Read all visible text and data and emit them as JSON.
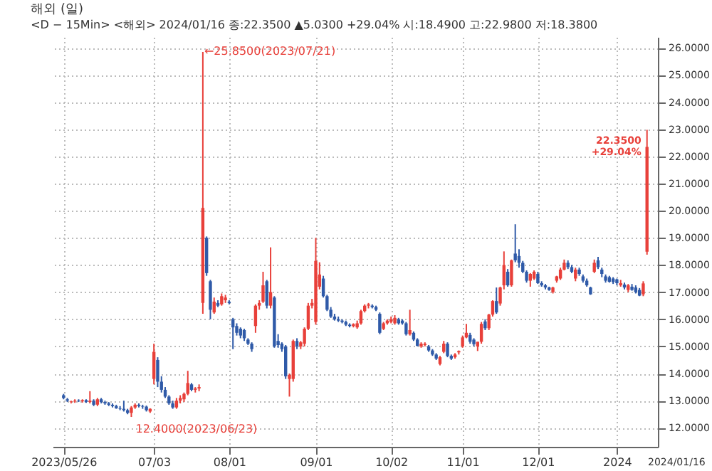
{
  "chart_data": {
    "type": "candlestick",
    "title": "해외 (일)",
    "subtitle": "<D − 15Min> <해외> 2024/01/16 종:22.3500 ▲5.0300 +29.04% 시:18.4900 고:22.9800 저:18.3800",
    "categories": [
      "2023/05/26",
      null,
      null,
      null,
      null,
      null,
      null,
      null,
      null,
      null,
      null,
      null,
      null,
      null,
      null,
      null,
      null,
      null,
      null,
      null,
      null,
      null,
      null,
      null,
      "07/03",
      null,
      null,
      null,
      null,
      null,
      null,
      null,
      null,
      null,
      null,
      null,
      null,
      null,
      null,
      null,
      null,
      null,
      null,
      null,
      "08/01",
      null,
      null,
      null,
      null,
      null,
      null,
      null,
      null,
      null,
      null,
      null,
      null,
      null,
      null,
      null,
      null,
      null,
      null,
      null,
      null,
      null,
      null,
      "09/01",
      null,
      null,
      null,
      null,
      null,
      null,
      null,
      null,
      null,
      null,
      null,
      null,
      null,
      null,
      null,
      null,
      null,
      null,
      null,
      "10/02",
      null,
      null,
      null,
      null,
      null,
      null,
      null,
      null,
      null,
      null,
      null,
      null,
      null,
      null,
      null,
      null,
      null,
      null,
      "11/01",
      null,
      null,
      null,
      null,
      null,
      null,
      null,
      null,
      null,
      null,
      null,
      null,
      null,
      null,
      null,
      null,
      null,
      null,
      null,
      "12/01",
      null,
      null,
      null,
      null,
      null,
      null,
      null,
      null,
      null,
      null,
      null,
      null,
      null,
      null,
      null,
      null,
      null,
      null,
      null,
      null,
      "2024",
      null,
      null,
      null,
      null,
      null,
      null,
      null,
      null
    ],
    "ohlc": [
      [
        13.2,
        13.25,
        13.05,
        13.1
      ],
      [
        13.05,
        13.1,
        12.95,
        13.0
      ],
      [
        12.95,
        13.0,
        12.9,
        12.97
      ],
      [
        12.97,
        13.05,
        12.92,
        13.0
      ],
      [
        13.0,
        13.05,
        12.95,
        12.98
      ],
      [
        12.98,
        13.05,
        12.93,
        13.02
      ],
      [
        13.02,
        13.05,
        12.92,
        12.95
      ],
      [
        12.95,
        13.35,
        12.9,
        13.0
      ],
      [
        13.0,
        13.05,
        12.8,
        12.85
      ],
      [
        12.85,
        13.1,
        12.8,
        13.05
      ],
      [
        13.05,
        13.1,
        12.9,
        12.95
      ],
      [
        12.95,
        13.0,
        12.85,
        12.9
      ],
      [
        12.9,
        12.95,
        12.8,
        12.85
      ],
      [
        12.85,
        12.9,
        12.75,
        12.8
      ],
      [
        12.8,
        12.85,
        12.7,
        12.72
      ],
      [
        12.72,
        12.8,
        12.65,
        12.7
      ],
      [
        12.7,
        13.0,
        12.6,
        12.65
      ],
      [
        12.65,
        12.7,
        12.5,
        12.55
      ],
      [
        12.55,
        12.8,
        12.4,
        12.75
      ],
      [
        12.75,
        12.9,
        12.7,
        12.85
      ],
      [
        12.85,
        12.9,
        12.75,
        12.8
      ],
      [
        12.8,
        12.85,
        12.7,
        12.78
      ],
      [
        12.78,
        12.82,
        12.6,
        12.65
      ],
      [
        12.6,
        12.72,
        12.55,
        12.7
      ],
      [
        13.8,
        15.1,
        13.6,
        14.8
      ],
      [
        14.5,
        14.6,
        13.5,
        13.7
      ],
      [
        13.7,
        13.9,
        13.3,
        13.4
      ],
      [
        13.4,
        13.5,
        13.1,
        13.15
      ],
      [
        13.15,
        13.2,
        12.85,
        12.9
      ],
      [
        12.9,
        13.0,
        12.7,
        12.75
      ],
      [
        12.75,
        13.1,
        12.7,
        13.0
      ],
      [
        13.0,
        13.2,
        12.9,
        13.1
      ],
      [
        13.05,
        13.3,
        12.95,
        13.25
      ],
      [
        13.25,
        14.1,
        13.2,
        13.65
      ],
      [
        13.6,
        13.65,
        13.35,
        13.4
      ],
      [
        13.4,
        13.5,
        13.3,
        13.45
      ],
      [
        13.45,
        13.6,
        13.35,
        13.5
      ],
      [
        16.6,
        25.85,
        16.2,
        20.1
      ],
      [
        19.0,
        19.05,
        17.6,
        17.7
      ],
      [
        17.4,
        17.45,
        16.0,
        16.35
      ],
      [
        16.25,
        16.8,
        16.2,
        16.65
      ],
      [
        16.6,
        16.7,
        16.45,
        16.5
      ],
      [
        16.55,
        16.95,
        16.5,
        16.85
      ],
      [
        16.7,
        16.9,
        16.6,
        16.8
      ],
      [
        16.65,
        16.7,
        16.55,
        16.6
      ],
      [
        16.0,
        16.05,
        14.9,
        15.7
      ],
      [
        15.75,
        15.85,
        15.4,
        15.5
      ],
      [
        15.65,
        15.7,
        15.3,
        15.4
      ],
      [
        15.6,
        15.65,
        15.2,
        15.3
      ],
      [
        15.25,
        15.3,
        15.05,
        15.1
      ],
      [
        15.1,
        15.15,
        14.8,
        14.9
      ],
      [
        15.75,
        16.55,
        15.5,
        16.5
      ],
      [
        16.5,
        16.7,
        16.35,
        16.6
      ],
      [
        16.65,
        17.75,
        16.6,
        17.25
      ],
      [
        17.4,
        17.45,
        16.4,
        16.5
      ],
      [
        16.5,
        18.65,
        16.4,
        17.0
      ],
      [
        16.8,
        16.85,
        14.95,
        15.0
      ],
      [
        15.2,
        15.45,
        14.95,
        15.05
      ],
      [
        15.1,
        15.15,
        14.8,
        14.9
      ],
      [
        15.0,
        15.05,
        13.8,
        13.9
      ],
      [
        13.8,
        14.0,
        13.15,
        13.95
      ],
      [
        13.8,
        15.25,
        13.7,
        15.2
      ],
      [
        15.2,
        15.3,
        14.9,
        15.0
      ],
      [
        15.0,
        15.2,
        14.9,
        15.15
      ],
      [
        15.1,
        15.7,
        15.0,
        15.65
      ],
      [
        15.65,
        16.6,
        15.6,
        16.5
      ],
      [
        16.5,
        16.75,
        16.4,
        16.6
      ],
      [
        15.9,
        19.0,
        15.8,
        18.15
      ],
      [
        17.2,
        18.1,
        17.1,
        17.65
      ],
      [
        17.5,
        17.6,
        16.8,
        16.85
      ],
      [
        16.85,
        16.9,
        16.3,
        16.35
      ],
      [
        16.35,
        16.45,
        16.05,
        16.1
      ],
      [
        16.1,
        16.2,
        15.95,
        16.0
      ],
      [
        16.0,
        16.1,
        15.9,
        15.95
      ],
      [
        15.95,
        16.0,
        15.85,
        15.9
      ],
      [
        15.9,
        15.95,
        15.75,
        15.8
      ],
      [
        15.8,
        15.85,
        15.7,
        15.75
      ],
      [
        15.75,
        15.85,
        15.7,
        15.82
      ],
      [
        15.7,
        15.95,
        15.65,
        15.85
      ],
      [
        15.85,
        16.35,
        15.8,
        16.3
      ],
      [
        16.3,
        16.55,
        16.25,
        16.5
      ],
      [
        16.5,
        16.6,
        16.4,
        16.55
      ],
      [
        16.5,
        16.55,
        16.4,
        16.45
      ],
      [
        16.45,
        16.5,
        16.3,
        16.35
      ],
      [
        16.2,
        16.25,
        15.45,
        15.5
      ],
      [
        15.65,
        15.9,
        15.6,
        15.85
      ],
      [
        15.85,
        16.0,
        15.8,
        15.95
      ],
      [
        15.9,
        16.1,
        15.85,
        16.0
      ],
      [
        15.85,
        16.15,
        15.8,
        16.05
      ],
      [
        16.0,
        16.05,
        15.8,
        15.85
      ],
      [
        15.95,
        16.0,
        15.8,
        15.85
      ],
      [
        15.85,
        15.9,
        15.4,
        15.45
      ],
      [
        15.45,
        16.35,
        15.4,
        15.6
      ],
      [
        15.5,
        15.55,
        15.2,
        15.25
      ],
      [
        15.25,
        15.3,
        15.0,
        15.02
      ],
      [
        15.0,
        15.15,
        14.95,
        15.1
      ],
      [
        15.05,
        15.15,
        15.0,
        15.1
      ],
      [
        15.0,
        15.05,
        14.8,
        14.85
      ],
      [
        14.85,
        14.9,
        14.65,
        14.7
      ],
      [
        14.7,
        14.75,
        14.5,
        14.55
      ],
      [
        14.35,
        14.65,
        14.3,
        14.6
      ],
      [
        14.8,
        15.2,
        14.75,
        15.1
      ],
      [
        15.1,
        15.15,
        14.6,
        14.65
      ],
      [
        14.65,
        14.7,
        14.5,
        14.55
      ],
      [
        14.6,
        14.75,
        14.55,
        14.7
      ],
      [
        14.78,
        14.85,
        14.7,
        14.83
      ],
      [
        15.0,
        15.4,
        14.95,
        15.33
      ],
      [
        15.33,
        15.83,
        15.3,
        15.5
      ],
      [
        15.42,
        15.5,
        15.1,
        15.17
      ],
      [
        15.25,
        15.3,
        15.0,
        15.08
      ],
      [
        15.0,
        15.17,
        14.83,
        15.17
      ],
      [
        15.17,
        15.9,
        15.1,
        15.83
      ],
      [
        15.92,
        16.0,
        15.6,
        15.67
      ],
      [
        15.67,
        16.2,
        15.6,
        16.17
      ],
      [
        16.17,
        16.7,
        16.1,
        16.67
      ],
      [
        16.67,
        17.17,
        16.2,
        16.25
      ],
      [
        16.58,
        17.2,
        16.5,
        17.17
      ],
      [
        17.25,
        18.5,
        17.1,
        18.0
      ],
      [
        17.75,
        17.85,
        17.2,
        17.25
      ],
      [
        17.25,
        18.2,
        17.2,
        18.17
      ],
      [
        18.42,
        19.5,
        18.1,
        18.17
      ],
      [
        18.33,
        18.58,
        17.9,
        18.08
      ],
      [
        18.08,
        18.15,
        17.7,
        17.75
      ],
      [
        17.75,
        17.8,
        17.35,
        17.42
      ],
      [
        17.42,
        17.7,
        17.2,
        17.67
      ],
      [
        17.5,
        17.8,
        17.45,
        17.75
      ],
      [
        17.67,
        17.75,
        17.3,
        17.33
      ],
      [
        17.33,
        17.4,
        17.2,
        17.25
      ],
      [
        17.25,
        17.3,
        17.1,
        17.17
      ],
      [
        17.17,
        17.2,
        17.05,
        17.08
      ],
      [
        17.0,
        17.2,
        16.95,
        17.17
      ],
      [
        17.42,
        17.6,
        17.35,
        17.58
      ],
      [
        17.5,
        17.9,
        17.45,
        17.83
      ],
      [
        17.83,
        18.2,
        17.8,
        18.08
      ],
      [
        18.08,
        18.17,
        17.85,
        17.92
      ],
      [
        17.92,
        18.0,
        17.7,
        17.75
      ],
      [
        17.5,
        17.9,
        17.4,
        17.83
      ],
      [
        17.83,
        17.9,
        17.6,
        17.67
      ],
      [
        17.58,
        17.65,
        17.35,
        17.42
      ],
      [
        17.42,
        17.5,
        17.2,
        17.25
      ],
      [
        17.17,
        17.2,
        16.9,
        16.92
      ],
      [
        17.75,
        18.2,
        17.7,
        18.08
      ],
      [
        18.17,
        18.3,
        17.85,
        17.92
      ],
      [
        17.83,
        17.9,
        17.55,
        17.67
      ],
      [
        17.58,
        17.65,
        17.35,
        17.42
      ],
      [
        17.55,
        17.6,
        17.35,
        17.38
      ],
      [
        17.5,
        17.55,
        17.3,
        17.37
      ],
      [
        17.47,
        17.5,
        17.25,
        17.33
      ],
      [
        17.25,
        17.45,
        17.2,
        17.33
      ],
      [
        17.28,
        17.35,
        17.1,
        17.17
      ],
      [
        17.08,
        17.3,
        17.0,
        17.25
      ],
      [
        17.2,
        17.3,
        17.05,
        17.08
      ],
      [
        17.17,
        17.25,
        16.95,
        17.0
      ],
      [
        17.08,
        17.15,
        16.85,
        16.87
      ],
      [
        16.92,
        17.4,
        16.85,
        17.32
      ],
      [
        18.49,
        22.98,
        18.38,
        22.35
      ]
    ],
    "colors": [
      "#2f5aa8",
      "#2f5aa8",
      "#e8403a",
      "#e8403a",
      "#2f5aa8",
      "#e8403a",
      "#2f5aa8",
      "#e8403a",
      "#2f5aa8",
      "#e8403a",
      "#2f5aa8",
      "#2f5aa8",
      "#2f5aa8",
      "#2f5aa8",
      "#2f5aa8",
      "#2f5aa8",
      "#2f5aa8",
      "#2f5aa8",
      "#e8403a",
      "#e8403a",
      "#2f5aa8",
      "#2f5aa8",
      "#2f5aa8",
      "#e8403a",
      "#e8403a",
      "#2f5aa8",
      "#2f5aa8",
      "#2f5aa8",
      "#2f5aa8",
      "#2f5aa8",
      "#e8403a",
      "#e8403a",
      "#e8403a",
      "#e8403a",
      "#2f5aa8",
      "#e8403a",
      "#e8403a",
      "#e8403a",
      "#2f5aa8",
      "#2f5aa8",
      "#e8403a",
      "#2f5aa8",
      "#e8403a",
      "#e8403a",
      "#2f5aa8",
      "#2f5aa8",
      "#2f5aa8",
      "#2f5aa8",
      "#2f5aa8",
      "#2f5aa8",
      "#2f5aa8",
      "#e8403a",
      "#e8403a",
      "#e8403a",
      "#2f5aa8",
      "#e8403a",
      "#2f5aa8",
      "#2f5aa8",
      "#2f5aa8",
      "#2f5aa8",
      "#e8403a",
      "#e8403a",
      "#2f5aa8",
      "#e8403a",
      "#e8403a",
      "#e8403a",
      "#e8403a",
      "#e8403a",
      "#e8403a",
      "#2f5aa8",
      "#2f5aa8",
      "#2f5aa8",
      "#2f5aa8",
      "#2f5aa8",
      "#2f5aa8",
      "#2f5aa8",
      "#2f5aa8",
      "#e8403a",
      "#e8403a",
      "#e8403a",
      "#e8403a",
      "#e8403a",
      "#2f5aa8",
      "#2f5aa8",
      "#2f5aa8",
      "#e8403a",
      "#e8403a",
      "#e8403a",
      "#e8403a",
      "#2f5aa8",
      "#2f5aa8",
      "#2f5aa8",
      "#e8403a",
      "#2f5aa8",
      "#2f5aa8",
      "#e8403a",
      "#e8403a",
      "#2f5aa8",
      "#2f5aa8",
      "#2f5aa8",
      "#e8403a",
      "#e8403a",
      "#2f5aa8",
      "#2f5aa8",
      "#e8403a",
      "#e8403a",
      "#e8403a",
      "#e8403a",
      "#2f5aa8",
      "#2f5aa8",
      "#e8403a",
      "#e8403a",
      "#2f5aa8",
      "#e8403a",
      "#e8403a",
      "#2f5aa8",
      "#e8403a",
      "#e8403a",
      "#2f5aa8",
      "#e8403a",
      "#2f5aa8",
      "#2f5aa8",
      "#2f5aa8",
      "#2f5aa8",
      "#e8403a",
      "#e8403a",
      "#2f5aa8",
      "#2f5aa8",
      "#2f5aa8",
      "#2f5aa8",
      "#e8403a",
      "#e8403a",
      "#e8403a",
      "#e8403a",
      "#2f5aa8",
      "#2f5aa8",
      "#e8403a",
      "#2f5aa8",
      "#2f5aa8",
      "#2f5aa8",
      "#2f5aa8",
      "#e8403a",
      "#2f5aa8",
      "#2f5aa8",
      "#2f5aa8",
      "#2f5aa8",
      "#2f5aa8",
      "#2f5aa8",
      "#e8403a",
      "#2f5aa8",
      "#e8403a",
      "#2f5aa8",
      "#2f5aa8",
      "#2f5aa8",
      "#e8403a",
      "#e8403a"
    ],
    "ylim": [
      11.3,
      26.4
    ],
    "yticks": [
      {
        "value": 12,
        "label": "12.0000"
      },
      {
        "value": 13,
        "label": "13.0000"
      },
      {
        "value": 14,
        "label": "14.0000"
      },
      {
        "value": 15,
        "label": "15.0000"
      },
      {
        "value": 16,
        "label": "16.0000"
      },
      {
        "value": 17,
        "label": "17.0000"
      },
      {
        "value": 18,
        "label": "18.0000"
      },
      {
        "value": 19,
        "label": "19.0000"
      },
      {
        "value": 20,
        "label": "20.0000"
      },
      {
        "value": 21,
        "label": "21.0000"
      },
      {
        "value": 22,
        "label": "22.0000"
      },
      {
        "value": 23,
        "label": "23.0000"
      },
      {
        "value": 24,
        "label": "24.0000"
      },
      {
        "value": 25,
        "label": "25.0000"
      },
      {
        "value": 26,
        "label": "26.0000"
      }
    ],
    "grid": true,
    "annotations": [
      "←25.8500(2023/07/21)",
      "12.4000(2023/06/23)",
      "22.3500",
      "+29.04%",
      "2024/01/16"
    ]
  }
}
